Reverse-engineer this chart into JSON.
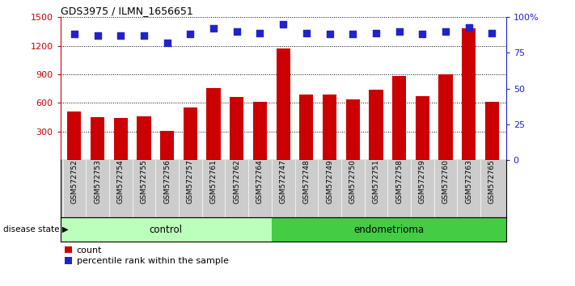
{
  "title": "GDS3975 / ILMN_1656651",
  "samples": [
    "GSM572752",
    "GSM572753",
    "GSM572754",
    "GSM572755",
    "GSM572756",
    "GSM572757",
    "GSM572761",
    "GSM572762",
    "GSM572764",
    "GSM572747",
    "GSM572748",
    "GSM572749",
    "GSM572750",
    "GSM572751",
    "GSM572758",
    "GSM572759",
    "GSM572760",
    "GSM572763",
    "GSM572765"
  ],
  "counts": [
    510,
    450,
    440,
    460,
    310,
    555,
    760,
    660,
    610,
    1170,
    690,
    685,
    640,
    740,
    880,
    670,
    900,
    1380,
    615
  ],
  "percentiles": [
    88,
    87,
    87,
    87,
    82,
    88,
    92,
    90,
    89,
    95,
    89,
    88,
    88,
    89,
    90,
    88,
    90,
    93,
    89
  ],
  "control_count": 9,
  "endometrioma_count": 10,
  "ylim_left": [
    0,
    1500
  ],
  "ylim_right": [
    0,
    100
  ],
  "yticks_left": [
    300,
    600,
    900,
    1200,
    1500
  ],
  "yticks_right": [
    0,
    25,
    50,
    75,
    100
  ],
  "ytick_labels_right": [
    "0",
    "25",
    "50",
    "75",
    "100%"
  ],
  "bar_color": "#cc0000",
  "dot_color": "#2222cc",
  "control_color": "#bbffbb",
  "endometrioma_color": "#44cc44",
  "bg_color": "#cccccc",
  "legend_count_label": "count",
  "legend_pct_label": "percentile rank within the sample",
  "disease_state_label": "disease state",
  "control_label": "control",
  "endometrioma_label": "endometrioma"
}
